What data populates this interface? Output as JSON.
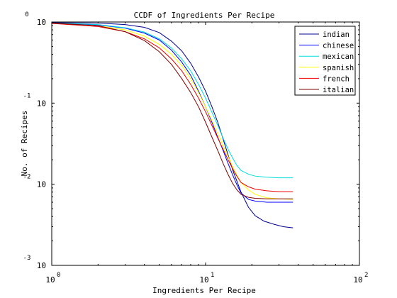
{
  "chart_data": {
    "type": "line",
    "title": "CCDF of Ingredients Per Recipe",
    "xlabel": "Ingredients Per Recipe",
    "ylabel": "No. of Recipes",
    "xscale": "log",
    "yscale": "log",
    "xlim": [
      1,
      100
    ],
    "ylim": [
      0.001,
      1
    ],
    "grid": false,
    "legend_position": "top-right",
    "x_ticks": [
      {
        "base": "10",
        "exp": "0"
      },
      {
        "base": "10",
        "exp": "1"
      },
      {
        "base": "10",
        "exp": "2"
      }
    ],
    "y_ticks": [
      {
        "base": "10",
        "exp": "0"
      },
      {
        "base": "10",
        "exp": "-1"
      },
      {
        "base": "10",
        "exp": "-2"
      },
      {
        "base": "10",
        "exp": "-3"
      }
    ],
    "series": [
      {
        "name": "indian",
        "color": "#00008f",
        "points": [
          [
            1,
            0.98
          ],
          [
            2,
            0.97
          ],
          [
            3,
            0.93
          ],
          [
            4,
            0.86
          ],
          [
            5,
            0.74
          ],
          [
            6,
            0.58
          ],
          [
            7,
            0.44
          ],
          [
            8,
            0.31
          ],
          [
            9,
            0.21
          ],
          [
            10,
            0.14
          ],
          [
            11,
            0.09
          ],
          [
            12,
            0.058
          ],
          [
            13,
            0.036
          ],
          [
            14,
            0.023
          ],
          [
            15,
            0.015
          ],
          [
            17,
            0.008
          ],
          [
            19,
            0.0052
          ],
          [
            21,
            0.0041
          ],
          [
            24,
            0.0035
          ],
          [
            28,
            0.0032
          ],
          [
            32,
            0.003
          ],
          [
            37,
            0.0029
          ]
        ]
      },
      {
        "name": "chinese",
        "color": "#0000ff",
        "points": [
          [
            1,
            0.96
          ],
          [
            2,
            0.92
          ],
          [
            3,
            0.84
          ],
          [
            4,
            0.73
          ],
          [
            5,
            0.6
          ],
          [
            6,
            0.45
          ],
          [
            7,
            0.32
          ],
          [
            8,
            0.22
          ],
          [
            9,
            0.14
          ],
          [
            10,
            0.09
          ],
          [
            11,
            0.058
          ],
          [
            12,
            0.038
          ],
          [
            13,
            0.026
          ],
          [
            14,
            0.018
          ],
          [
            15,
            0.013
          ],
          [
            16,
            0.0098
          ],
          [
            17,
            0.0078
          ],
          [
            19,
            0.0065
          ],
          [
            21,
            0.0062
          ],
          [
            25,
            0.006
          ],
          [
            30,
            0.006
          ],
          [
            37,
            0.006
          ]
        ]
      },
      {
        "name": "mexican",
        "color": "#00dddd",
        "points": [
          [
            1,
            0.97
          ],
          [
            2,
            0.93
          ],
          [
            3,
            0.85
          ],
          [
            4,
            0.75
          ],
          [
            5,
            0.62
          ],
          [
            6,
            0.48
          ],
          [
            7,
            0.35
          ],
          [
            8,
            0.25
          ],
          [
            9,
            0.17
          ],
          [
            10,
            0.115
          ],
          [
            11,
            0.077
          ],
          [
            12,
            0.053
          ],
          [
            13,
            0.037
          ],
          [
            14,
            0.027
          ],
          [
            15,
            0.021
          ],
          [
            16,
            0.017
          ],
          [
            17,
            0.0148
          ],
          [
            19,
            0.0133
          ],
          [
            21,
            0.0126
          ],
          [
            25,
            0.0122
          ],
          [
            30,
            0.012
          ],
          [
            37,
            0.012
          ]
        ]
      },
      {
        "name": "spanish",
        "color": "#ffff00",
        "points": [
          [
            1,
            0.96
          ],
          [
            2,
            0.9
          ],
          [
            3,
            0.8
          ],
          [
            4,
            0.67
          ],
          [
            5,
            0.53
          ],
          [
            6,
            0.4
          ],
          [
            7,
            0.29
          ],
          [
            8,
            0.2
          ],
          [
            9,
            0.135
          ],
          [
            10,
            0.09
          ],
          [
            11,
            0.061
          ],
          [
            12,
            0.042
          ],
          [
            13,
            0.03
          ],
          [
            14,
            0.022
          ],
          [
            15,
            0.0165
          ],
          [
            16,
            0.0128
          ],
          [
            17,
            0.0105
          ],
          [
            19,
            0.0085
          ],
          [
            21,
            0.0075
          ],
          [
            25,
            0.0068
          ],
          [
            30,
            0.0066
          ],
          [
            37,
            0.0065
          ]
        ]
      },
      {
        "name": "french",
        "color": "#ee0000",
        "points": [
          [
            1,
            0.96
          ],
          [
            2,
            0.88
          ],
          [
            3,
            0.76
          ],
          [
            4,
            0.62
          ],
          [
            5,
            0.48
          ],
          [
            6,
            0.35
          ],
          [
            7,
            0.25
          ],
          [
            8,
            0.17
          ],
          [
            9,
            0.115
          ],
          [
            10,
            0.078
          ],
          [
            11,
            0.053
          ],
          [
            12,
            0.037
          ],
          [
            13,
            0.027
          ],
          [
            14,
            0.02
          ],
          [
            15,
            0.0155
          ],
          [
            16,
            0.0125
          ],
          [
            17,
            0.0105
          ],
          [
            19,
            0.0093
          ],
          [
            21,
            0.0087
          ],
          [
            25,
            0.0083
          ],
          [
            30,
            0.0081
          ],
          [
            37,
            0.0081
          ]
        ]
      },
      {
        "name": "italian",
        "color": "#800000",
        "points": [
          [
            1,
            0.97
          ],
          [
            2,
            0.9
          ],
          [
            3,
            0.76
          ],
          [
            4,
            0.59
          ],
          [
            5,
            0.43
          ],
          [
            6,
            0.3
          ],
          [
            7,
            0.2
          ],
          [
            8,
            0.135
          ],
          [
            9,
            0.09
          ],
          [
            10,
            0.058
          ],
          [
            11,
            0.038
          ],
          [
            12,
            0.026
          ],
          [
            13,
            0.018
          ],
          [
            14,
            0.0132
          ],
          [
            15,
            0.0102
          ],
          [
            16,
            0.0085
          ],
          [
            17,
            0.0075
          ],
          [
            19,
            0.0069
          ],
          [
            21,
            0.0067
          ],
          [
            25,
            0.0066
          ],
          [
            30,
            0.0066
          ],
          [
            37,
            0.0066
          ]
        ]
      }
    ]
  }
}
